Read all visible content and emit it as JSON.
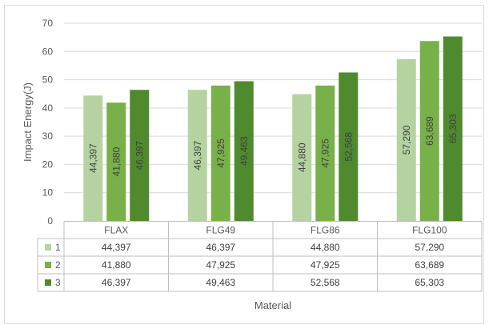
{
  "chart_data": {
    "type": "bar",
    "title": "",
    "xlabel": "Material",
    "ylabel": "Impact Energy(J)",
    "categories": [
      "FLAX",
      "FLG49",
      "FLG86",
      "FLG100"
    ],
    "ylim": [
      0,
      70
    ],
    "yticks": [
      "0",
      "10",
      "20",
      "30",
      "40",
      "50",
      "60",
      "70"
    ],
    "grid": true,
    "legend": "data-table",
    "series": [
      {
        "name": "1",
        "color": "#b5d3a0",
        "values": [
          44.397,
          46.397,
          44.88,
          57.29
        ],
        "labels": [
          "44,397",
          "46,397",
          "44,880",
          "57,290"
        ]
      },
      {
        "name": "2",
        "color": "#78b04a",
        "values": [
          41.88,
          47.925,
          47.925,
          63.689
        ],
        "labels": [
          "41,880",
          "47,925",
          "47,925",
          "63,689"
        ]
      },
      {
        "name": "3",
        "color": "#4f8a2e",
        "values": [
          46.397,
          49.463,
          52.568,
          65.303
        ],
        "labels": [
          "46,397",
          "49,463",
          "52,568",
          "65,303"
        ]
      }
    ]
  }
}
